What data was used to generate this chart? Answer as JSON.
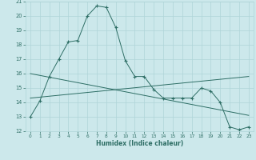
{
  "xlabel": "Humidex (Indice chaleur)",
  "bg_color": "#cce8eb",
  "grid_color": "#afd4d8",
  "line_color": "#2e6e65",
  "xlim": [
    -0.5,
    23.5
  ],
  "ylim": [
    12,
    21
  ],
  "yticks": [
    12,
    13,
    14,
    15,
    16,
    17,
    18,
    19,
    20,
    21
  ],
  "xticks": [
    0,
    1,
    2,
    3,
    4,
    5,
    6,
    7,
    8,
    9,
    10,
    11,
    12,
    13,
    14,
    15,
    16,
    17,
    18,
    19,
    20,
    21,
    22,
    23
  ],
  "series1_x": [
    0,
    1,
    2,
    3,
    4,
    5,
    6,
    7,
    8,
    9,
    10,
    11,
    12,
    13,
    14,
    15,
    16,
    17,
    18,
    19,
    20,
    21,
    22,
    23
  ],
  "series1_y": [
    13.0,
    14.1,
    15.8,
    17.0,
    18.2,
    18.3,
    20.0,
    20.7,
    20.6,
    19.2,
    16.9,
    15.8,
    15.8,
    14.9,
    14.3,
    14.3,
    14.3,
    14.3,
    15.0,
    14.8,
    14.0,
    12.3,
    12.1,
    12.3
  ],
  "series2_x": [
    0,
    23
  ],
  "series2_y": [
    16.0,
    13.1
  ],
  "series3_x": [
    0,
    23
  ],
  "series3_y": [
    14.3,
    15.8
  ]
}
